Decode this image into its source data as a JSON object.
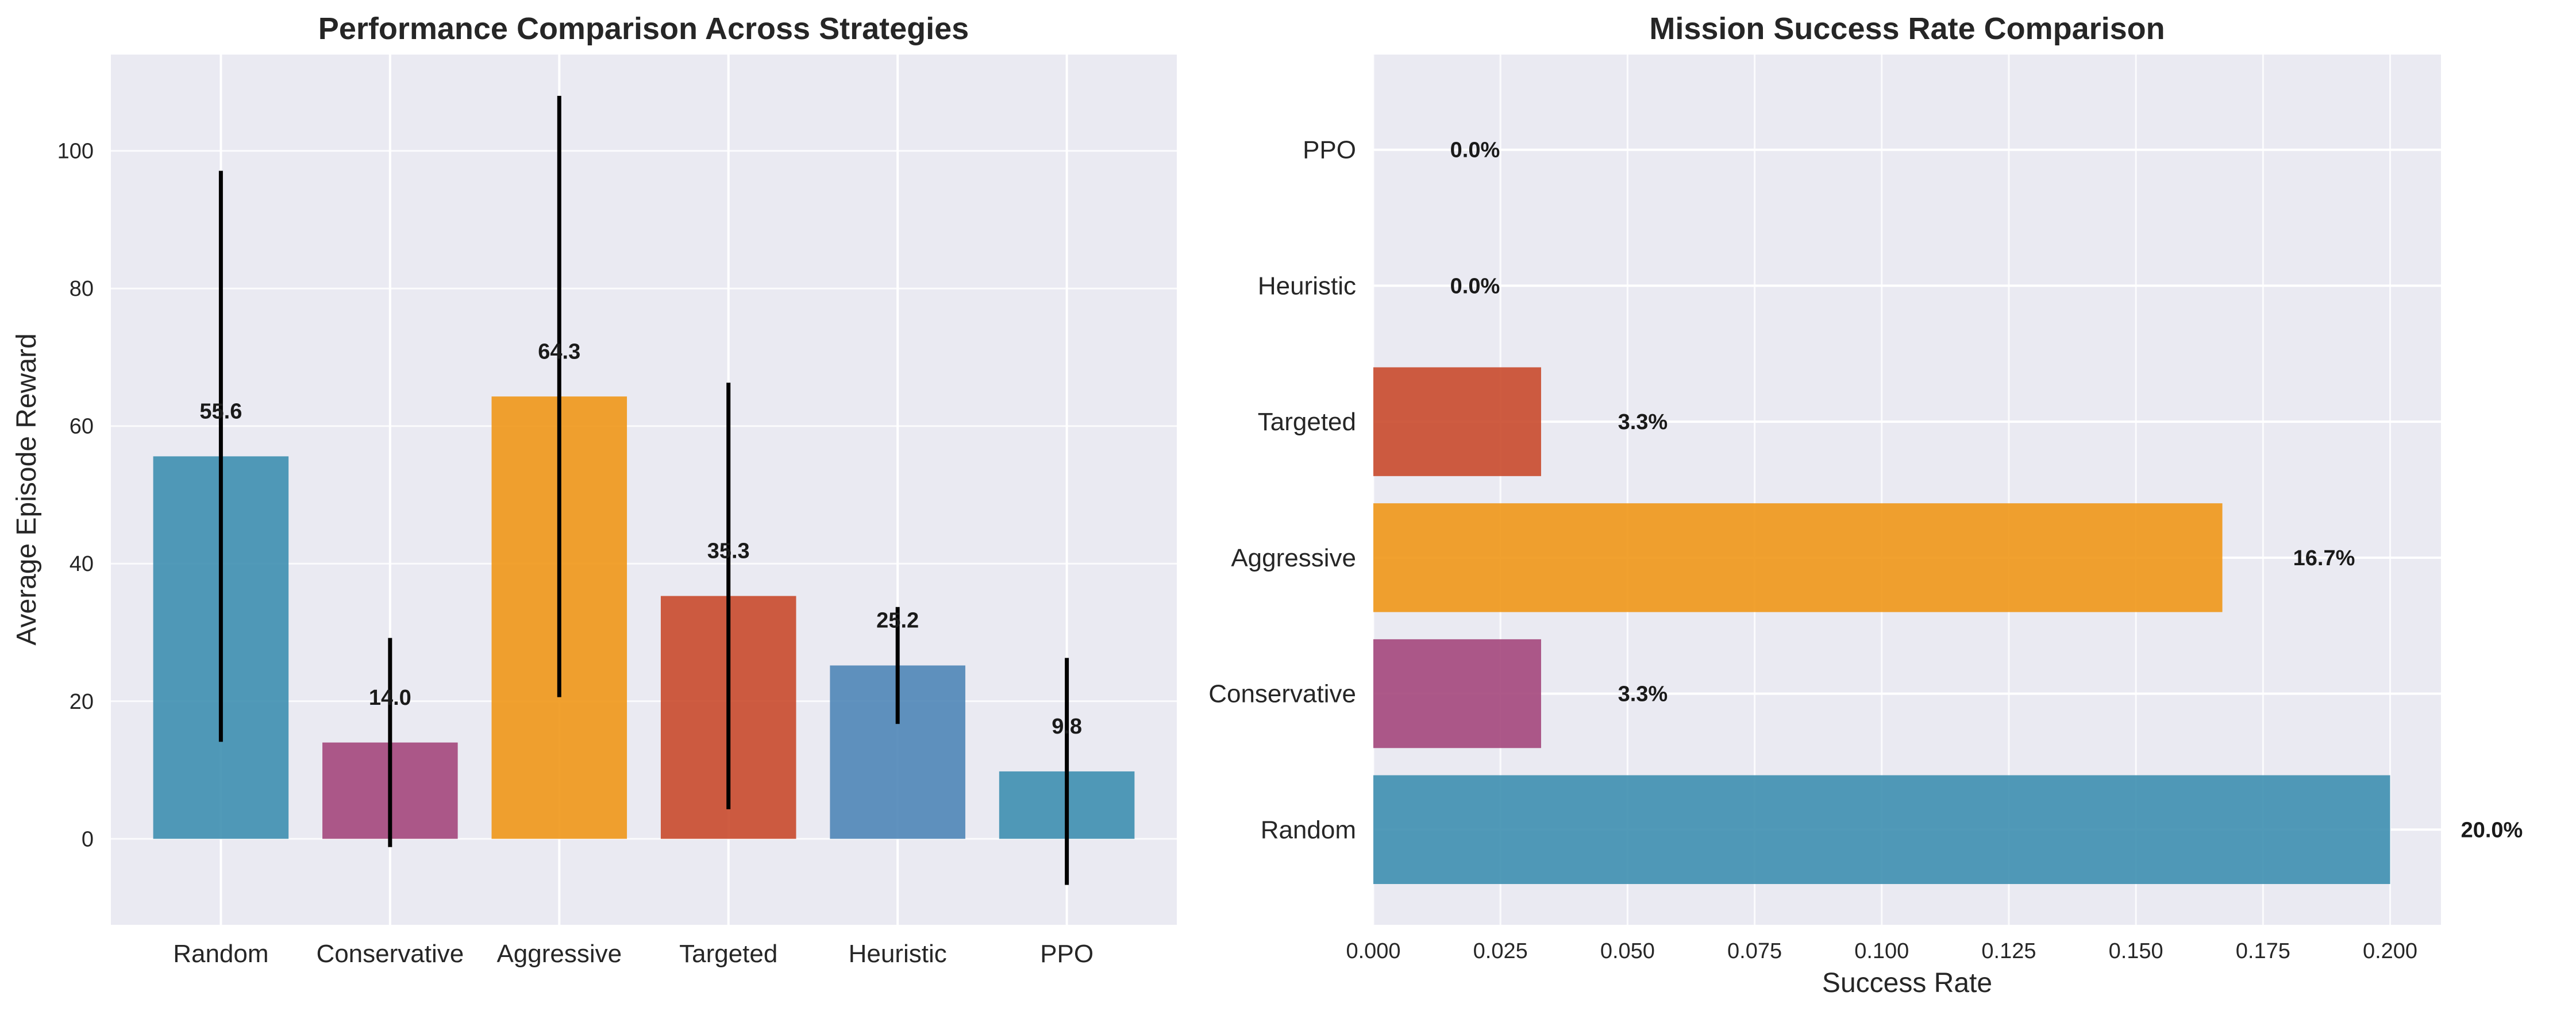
{
  "chart_data": [
    {
      "type": "bar",
      "title": "Performance Comparison Across Strategies",
      "xlabel": "",
      "ylabel": "Average Episode Reward",
      "categories": [
        "Random",
        "Conservative",
        "Aggressive",
        "Targeted",
        "Heuristic",
        "PPO"
      ],
      "values": [
        55.6,
        14.0,
        64.3,
        35.3,
        25.2,
        9.8
      ],
      "value_labels": [
        "55.6",
        "14.0",
        "64.3",
        "35.3",
        "25.2",
        "9.8"
      ],
      "error": [
        41.5,
        15.2,
        43.7,
        31.0,
        8.5,
        16.5
      ],
      "colors": [
        "#3e8fb0",
        "#a4477c",
        "#ef9718",
        "#c94a2c",
        "#4f86b7",
        "#3e8fb0"
      ],
      "ylim": [
        -12.5,
        114
      ],
      "yticks": [
        0,
        20,
        40,
        60,
        80,
        100
      ],
      "ytick_labels": [
        "0",
        "20",
        "40",
        "60",
        "80",
        "100"
      ],
      "grid": true
    },
    {
      "type": "barh",
      "title": "Mission Success Rate Comparison",
      "xlabel": "Success Rate",
      "ylabel": "",
      "categories": [
        "Random",
        "Conservative",
        "Aggressive",
        "Targeted",
        "Heuristic",
        "PPO"
      ],
      "values": [
        0.2,
        0.033,
        0.167,
        0.033,
        0.0,
        0.0
      ],
      "value_labels": [
        "20.0%",
        "3.3%",
        "16.7%",
        "3.3%",
        "0.0%",
        "0.0%"
      ],
      "colors": [
        "#3e8fb0",
        "#a4477c",
        "#ef9718",
        "#c94a2c",
        "#4f86b7",
        "#3e8fb0"
      ],
      "xlim": [
        0,
        0.21
      ],
      "xticks": [
        0,
        0.025,
        0.05,
        0.075,
        0.1,
        0.125,
        0.15,
        0.175,
        0.2
      ],
      "xtick_labels": [
        "0.000",
        "0.025",
        "0.050",
        "0.075",
        "0.100",
        "0.125",
        "0.150",
        "0.175",
        "0.200"
      ],
      "grid": true
    }
  ]
}
